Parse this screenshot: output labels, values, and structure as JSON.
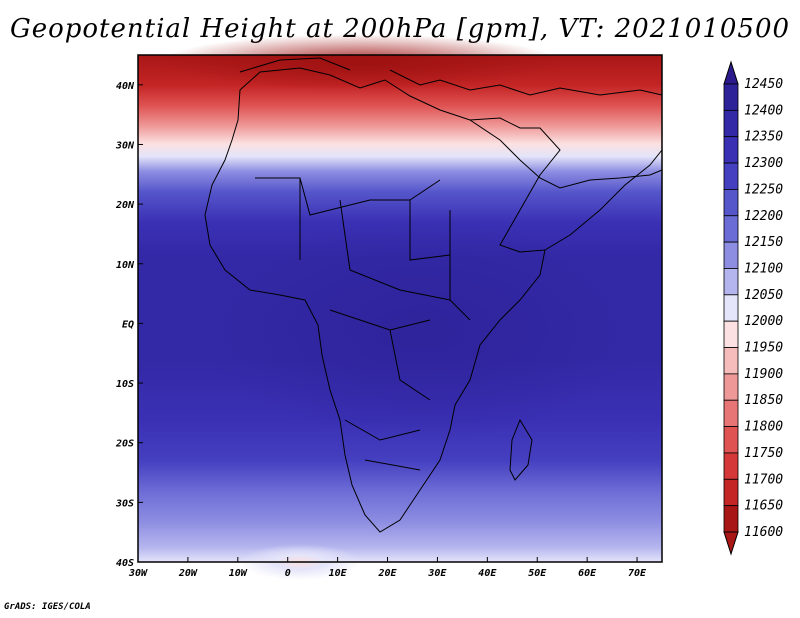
{
  "title": "Geopotential Height at 200hPa [gpm], VT: 2021010500",
  "credit": "GrADS: IGES/COLA",
  "map": {
    "lon_range": [
      -30,
      75
    ],
    "lat_range": [
      -40,
      45
    ],
    "lon_ticks": [
      "30W",
      "20W",
      "10W",
      "0",
      "10E",
      "20E",
      "30E",
      "40E",
      "50E",
      "60E",
      "70E"
    ],
    "lat_ticks": [
      "40N",
      "30N",
      "20N",
      "10N",
      "EQ",
      "10S",
      "20S",
      "30S",
      "40S"
    ]
  },
  "colorbar": {
    "levels": [
      "12450",
      "12400",
      "12350",
      "12300",
      "12250",
      "12200",
      "12150",
      "12100",
      "12050",
      "12000",
      "11950",
      "11900",
      "11850",
      "11800",
      "11750",
      "11700",
      "11650",
      "11600"
    ],
    "colors": [
      "#2a1a8c",
      "#2e2299",
      "#3329a6",
      "#3a30b4",
      "#4540c0",
      "#5656cb",
      "#6c6cd6",
      "#8d8de2",
      "#b4b4ee",
      "#e4e4fa",
      "#fbe1e1",
      "#f6bcbc",
      "#ef9898",
      "#e87575",
      "#df5353",
      "#d43838",
      "#c42525",
      "#a81616"
    ]
  }
}
